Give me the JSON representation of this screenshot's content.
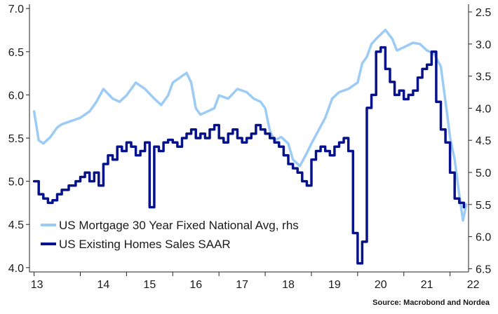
{
  "chart_data": {
    "type": "line",
    "title": "",
    "source": "Source: Macrobond and Nordea",
    "x_ticks": [
      "13",
      "14",
      "15",
      "16",
      "17",
      "18",
      "19",
      "20",
      "21",
      "22"
    ],
    "xlim": [
      2012.9,
      2022.4
    ],
    "left_axis": {
      "ylim": [
        3.95,
        7.05
      ],
      "ticks": [
        "4.0",
        "4.5",
        "5.0",
        "5.5",
        "6.0",
        "6.5",
        "7.0"
      ]
    },
    "right_axis": {
      "ylim": [
        6.55,
        2.38
      ],
      "inverted": true,
      "ticks": [
        "2.5",
        "3.0",
        "3.5",
        "4.0",
        "4.5",
        "5.0",
        "5.5",
        "6.0",
        "6.5"
      ]
    },
    "colors": {
      "mortgage": "#9ccbf5",
      "existing_sales": "#05128c"
    },
    "series": [
      {
        "name": "US Mortgage 30 Year Fixed National Avg, rhs",
        "axis": "right",
        "style": "smooth",
        "x": [
          2013.0,
          2013.1,
          2013.2,
          2013.35,
          2013.5,
          2013.6,
          2013.8,
          2014.0,
          2014.2,
          2014.35,
          2014.5,
          2014.7,
          2014.85,
          2015.0,
          2015.2,
          2015.4,
          2015.6,
          2015.75,
          2015.9,
          2016.0,
          2016.1,
          2016.2,
          2016.3,
          2016.4,
          2016.5,
          2016.6,
          2016.75,
          2016.9,
          2017.0,
          2017.2,
          2017.4,
          2017.6,
          2017.75,
          2017.9,
          2018.0,
          2018.1,
          2018.2,
          2018.35,
          2018.5,
          2018.6,
          2018.75,
          2018.9,
          2019.0,
          2019.15,
          2019.3,
          2019.45,
          2019.6,
          2019.8,
          2019.9,
          2020.0,
          2020.1,
          2020.2,
          2020.3,
          2020.4,
          2020.5,
          2020.6,
          2020.75,
          2020.85,
          2021.0,
          2021.2,
          2021.35,
          2021.5,
          2021.65,
          2021.8,
          2021.92,
          2022.0,
          2022.1,
          2022.2,
          2022.28,
          2022.35
        ],
        "y": [
          4.05,
          4.5,
          4.55,
          4.45,
          4.3,
          4.25,
          4.2,
          4.15,
          4.05,
          3.9,
          3.7,
          3.85,
          3.9,
          3.8,
          3.6,
          3.7,
          3.85,
          3.95,
          3.8,
          3.6,
          3.55,
          3.5,
          3.45,
          3.6,
          4.0,
          4.1,
          4.05,
          4.0,
          3.8,
          3.85,
          3.7,
          3.75,
          3.85,
          3.9,
          4.0,
          4.35,
          4.5,
          4.45,
          4.55,
          4.8,
          4.9,
          4.7,
          4.55,
          4.35,
          4.15,
          3.85,
          3.75,
          3.7,
          3.65,
          3.6,
          3.3,
          3.2,
          3.0,
          2.92,
          2.85,
          2.78,
          2.92,
          3.1,
          3.05,
          2.98,
          3.0,
          3.1,
          3.15,
          3.35,
          4.0,
          4.45,
          4.8,
          5.35,
          5.75,
          5.5
        ]
      },
      {
        "name": "US Existing Homes Sales SAAR",
        "axis": "left",
        "style": "step",
        "x": [
          2013.0,
          2013.1,
          2013.2,
          2013.3,
          2013.4,
          2013.5,
          2013.6,
          2013.75,
          2013.9,
          2014.0,
          2014.1,
          2014.2,
          2014.3,
          2014.4,
          2014.5,
          2014.6,
          2014.7,
          2014.8,
          2014.9,
          2015.0,
          2015.1,
          2015.2,
          2015.3,
          2015.4,
          2015.5,
          2015.6,
          2015.7,
          2015.8,
          2015.9,
          2016.0,
          2016.1,
          2016.2,
          2016.3,
          2016.4,
          2016.5,
          2016.6,
          2016.7,
          2016.8,
          2016.9,
          2017.0,
          2017.1,
          2017.2,
          2017.3,
          2017.4,
          2017.5,
          2017.6,
          2017.7,
          2017.8,
          2017.9,
          2018.0,
          2018.1,
          2018.2,
          2018.3,
          2018.4,
          2018.5,
          2018.6,
          2018.7,
          2018.8,
          2018.9,
          2019.0,
          2019.1,
          2019.2,
          2019.3,
          2019.4,
          2019.5,
          2019.6,
          2019.7,
          2019.8,
          2019.9,
          2020.0,
          2020.1,
          2020.2,
          2020.3,
          2020.4,
          2020.5,
          2020.6,
          2020.7,
          2020.8,
          2020.9,
          2021.0,
          2021.1,
          2021.2,
          2021.3,
          2021.4,
          2021.5,
          2021.6,
          2021.7,
          2021.8,
          2021.9,
          2022.0,
          2022.1,
          2022.2,
          2022.3
        ],
        "y": [
          5.0,
          4.85,
          4.8,
          4.75,
          4.78,
          4.85,
          4.9,
          4.95,
          5.0,
          5.05,
          5.1,
          5.0,
          5.1,
          4.95,
          5.2,
          5.3,
          5.25,
          5.4,
          5.35,
          5.45,
          5.4,
          5.3,
          5.35,
          5.45,
          4.7,
          5.4,
          5.35,
          5.45,
          5.48,
          5.45,
          5.4,
          5.5,
          5.55,
          5.6,
          5.5,
          5.55,
          5.5,
          5.6,
          5.65,
          5.5,
          5.45,
          5.55,
          5.6,
          5.5,
          5.45,
          5.5,
          5.55,
          5.65,
          5.6,
          5.55,
          5.5,
          5.45,
          5.4,
          5.3,
          5.2,
          5.15,
          5.1,
          5.0,
          4.95,
          5.25,
          5.35,
          5.4,
          5.35,
          5.3,
          5.4,
          5.45,
          5.5,
          5.35,
          4.4,
          4.05,
          4.3,
          5.85,
          6.0,
          6.5,
          6.55,
          6.3,
          6.15,
          6.0,
          6.05,
          5.95,
          6.0,
          6.05,
          6.2,
          6.3,
          6.35,
          6.5,
          5.92,
          5.6,
          5.45,
          5.1,
          4.8,
          4.75,
          4.7
        ]
      }
    ]
  }
}
